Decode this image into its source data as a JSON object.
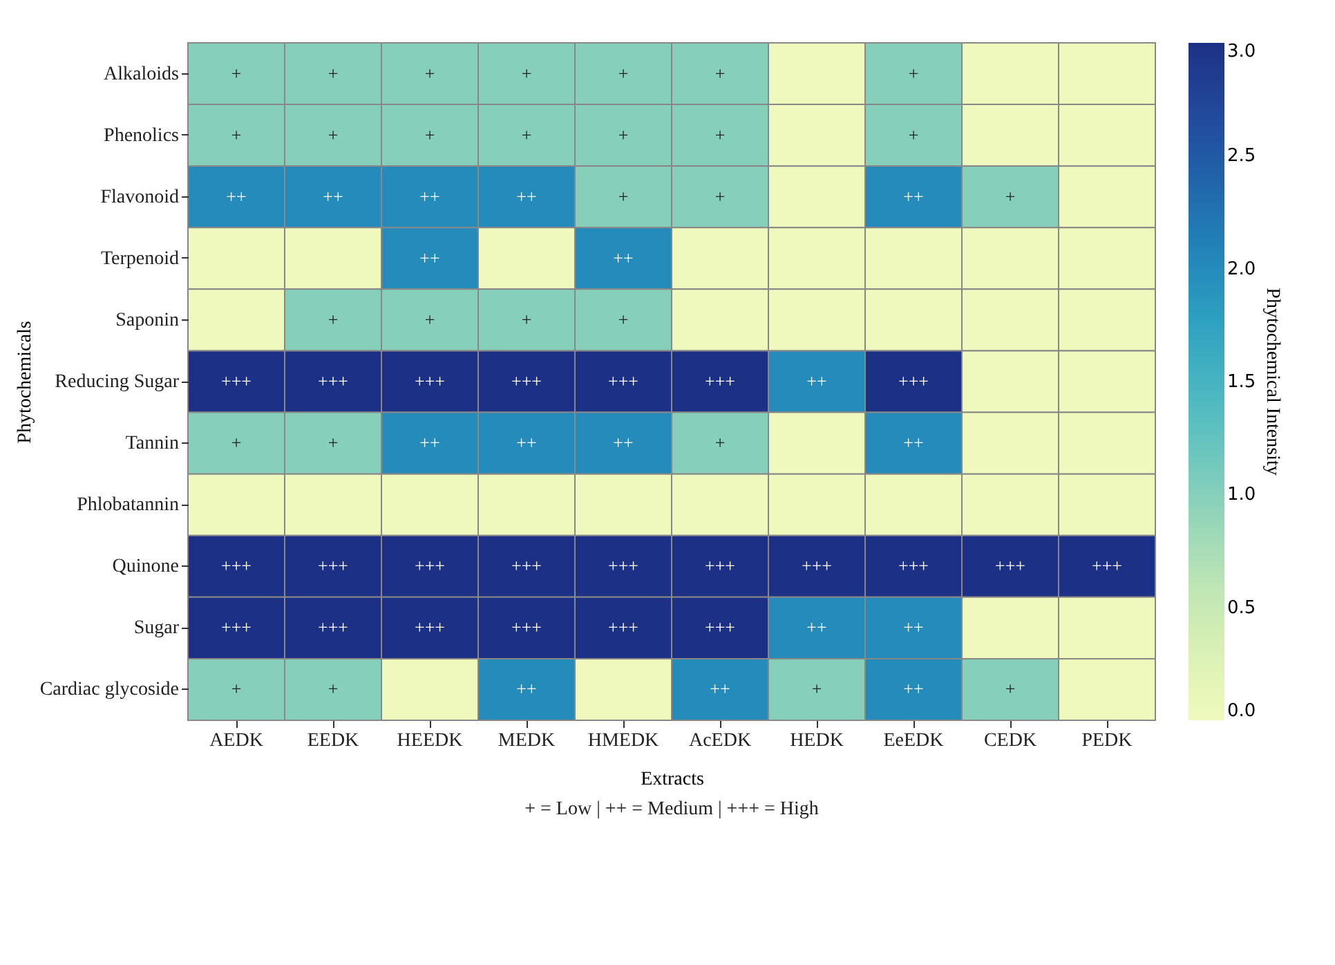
{
  "chart_data": {
    "type": "heatmap",
    "xlabel": "Extracts",
    "ylabel": "Phytochemicals",
    "clabel": "Phytochemical Intensity",
    "categories": [
      "AEDK",
      "EEDK",
      "HEEDK",
      "MEDK",
      "HMEDK",
      "AcEDK",
      "HEDK",
      "EeEDK",
      "CEDK",
      "PEDK"
    ],
    "y_categories": [
      "Alkaloids",
      "Phenolics",
      "Flavonoid",
      "Terpenoid",
      "Saponin",
      "Reducing Sugar",
      "Tannin",
      "Phlobatannin",
      "Quinone",
      "Sugar",
      "Cardiac glycoside"
    ],
    "cells": [
      [
        1,
        1,
        1,
        1,
        1,
        1,
        0,
        1,
        0,
        0
      ],
      [
        1,
        1,
        1,
        1,
        1,
        1,
        0,
        1,
        0,
        0
      ],
      [
        2,
        2,
        2,
        2,
        1,
        1,
        0,
        2,
        1,
        0
      ],
      [
        0,
        0,
        2,
        0,
        2,
        0,
        0,
        0,
        0,
        0
      ],
      [
        0,
        1,
        1,
        1,
        1,
        0,
        0,
        0,
        0,
        0
      ],
      [
        3,
        3,
        3,
        3,
        3,
        3,
        2,
        3,
        0,
        0
      ],
      [
        1,
        1,
        2,
        2,
        2,
        1,
        0,
        2,
        0,
        0
      ],
      [
        0,
        0,
        0,
        0,
        0,
        0,
        0,
        0,
        0,
        0
      ],
      [
        3,
        3,
        3,
        3,
        3,
        3,
        3,
        3,
        3,
        3
      ],
      [
        3,
        3,
        3,
        3,
        3,
        3,
        2,
        2,
        0,
        0
      ],
      [
        1,
        1,
        0,
        2,
        0,
        2,
        1,
        2,
        1,
        0
      ]
    ],
    "cell_labels": [
      [
        "+",
        "+",
        "+",
        "+",
        "+",
        "+",
        null,
        "+",
        null,
        null
      ],
      [
        "+",
        "+",
        "+",
        "+",
        "+",
        "+",
        null,
        "+",
        null,
        null
      ],
      [
        "++",
        "++",
        "++",
        "++",
        "+",
        "+",
        null,
        "++",
        "+",
        null
      ],
      [
        null,
        null,
        "++",
        null,
        "++",
        null,
        null,
        null,
        null,
        null
      ],
      [
        null,
        "+",
        "+",
        "+",
        "+",
        null,
        null,
        null,
        null,
        null
      ],
      [
        "+++",
        "+++",
        "+++",
        "+++",
        "+++",
        "+++",
        "++",
        "+++",
        null,
        null
      ],
      [
        "+",
        "+",
        "++",
        "++",
        "++",
        "+",
        null,
        "++",
        null,
        null
      ],
      [
        null,
        null,
        null,
        null,
        null,
        null,
        null,
        null,
        null,
        null
      ],
      [
        "+++",
        "+++",
        "+++",
        "+++",
        "+++",
        "+++",
        "+++",
        "+++",
        "+++",
        "+++"
      ],
      [
        "+++",
        "+++",
        "+++",
        "+++",
        "+++",
        "+++",
        "++",
        "++",
        null,
        null
      ],
      [
        "+",
        "+",
        null,
        "++",
        null,
        "++",
        "+",
        "++",
        "+",
        null
      ]
    ],
    "clim": [
      0,
      3
    ],
    "cticks": [
      {
        "value": 0,
        "label": "0.0"
      },
      {
        "value": 0.5,
        "label": "0.5"
      },
      {
        "value": 1,
        "label": "1.0"
      },
      {
        "value": 1.5,
        "label": "1.5"
      },
      {
        "value": 2,
        "label": "2.0"
      },
      {
        "value": 2.5,
        "label": "2.5"
      },
      {
        "value": 3,
        "label": "3.0"
      }
    ],
    "annotations": [
      "+ = Low | ++ = Medium | +++ = High"
    ]
  }
}
